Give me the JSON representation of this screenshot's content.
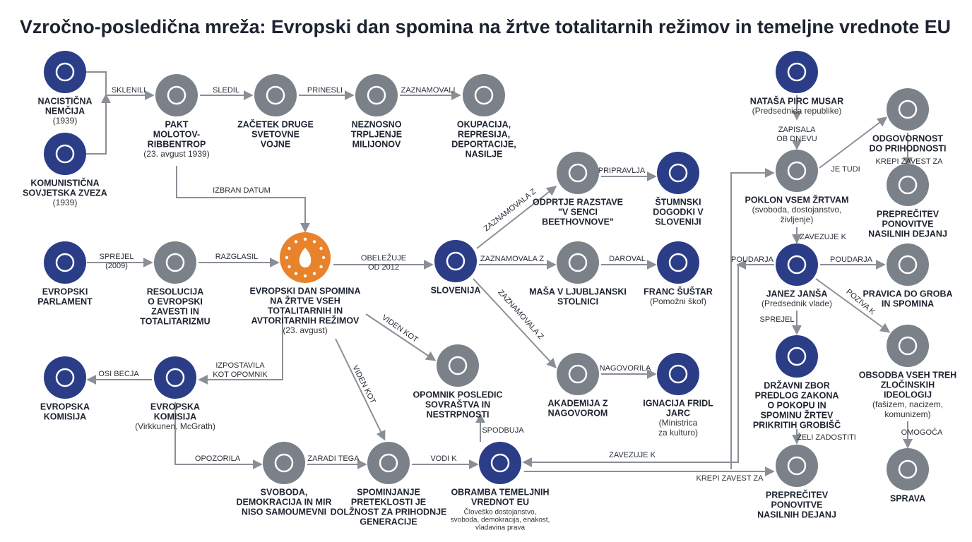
{
  "title": "Vzročno-posledična mreža: Evropski dan spomina na žrtve totalitarnih režimov in temeljne vrednote EU",
  "nodes": [
    {
      "label": [
        "NACISTIČNA",
        "NEMČIJA"
      ],
      "sub": [
        "(1939)"
      ]
    },
    {
      "label": [
        "KOMUNISTIČNA",
        "SOVJETSKA ZVEZA"
      ],
      "sub": [
        "(1939)"
      ]
    },
    {
      "label": [
        "PAKT",
        "MOLOTOV-",
        "RIBBENTROP"
      ],
      "sub": [
        "(23. avgust 1939)"
      ]
    },
    {
      "label": [
        "ZAČETEK DRUGE",
        "SVETOVNE",
        "VOJNE"
      ]
    },
    {
      "label": [
        "NEZNOSNO",
        "TRPLJENJE",
        "MILIJONOV"
      ]
    },
    {
      "label": [
        "OKUPACIJA,",
        "REPRESIJA,",
        "DEPORTACIJE,",
        "NASILJE"
      ]
    },
    {
      "label": [
        "EVROPSKI",
        "PARLAMENT"
      ]
    },
    {
      "label": [
        "RESOLUCIJA",
        "O EVROPSKI",
        "ZAVESTI IN",
        "TOTALITARIZMU"
      ]
    },
    {
      "label": [
        "EVROPSKI DAN SPOMINA",
        "NA ŽRTVE VSEH",
        "TOTALITARNIH IN",
        "AVTORITARNIH REŽIMOV"
      ],
      "sub": [
        "(23. avgust)"
      ]
    },
    {
      "label": [
        "SLOVENIJA"
      ]
    },
    {
      "label": [
        "ODPRTJE RAZSTAVE",
        "\"V SENCI",
        "BEETHOVNOVE\""
      ]
    },
    {
      "label": [
        "ŠTUMNSKI",
        "DOGODKI V",
        "SLOVENIJI"
      ]
    },
    {
      "label": [
        "MAŠA V LJUBLJANSKI",
        "STOLNICI"
      ]
    },
    {
      "label": [
        "FRANC ŠUŠTAR"
      ],
      "sub": [
        "(Pomožni škof)"
      ]
    },
    {
      "label": [
        "AKADEMIJA Z",
        "NAGOVOROM"
      ]
    },
    {
      "label": [
        "IGNACIJA FRIDL",
        "JARC"
      ],
      "sub": [
        "(Ministrica",
        "za kulturo)"
      ]
    },
    {
      "label": [
        "EVROPSKA",
        "KOMISIJA"
      ]
    },
    {
      "label": [
        "EVROPSKA",
        "KOMISIJA"
      ],
      "sub": [
        "(Virkkunen, McGrath)"
      ]
    },
    {
      "label": [
        "OPOMNIK POSLEDIC",
        "SOVRAŠTVA IN",
        "NESTRPNOSTI"
      ]
    },
    {
      "label": [
        "SVOBODA,",
        "DEMOKRACIJA IN MIR",
        "NISO SAMOUMEVNI"
      ]
    },
    {
      "label": [
        "SPOMINJANJE",
        "PRETEKLOSTI JE",
        "DOLŽNOST ZA PRIHODNJE",
        "GENERACIJE"
      ]
    },
    {
      "label": [
        "OBRAMBA TEMELJNIH",
        "VREDNOT EU"
      ],
      "note": [
        "Človeško dostojanstvo,",
        "svoboda, demokracija, enakost,",
        "vladavina prava"
      ]
    },
    {
      "label": [
        "NATAŠA PIRC MUSAR"
      ],
      "sub": [
        "(Predsednica republike)"
      ]
    },
    {
      "label": [
        "POKLON VSEM ŽRTVAM"
      ],
      "sub": [
        "(svoboda, dostojanstvo,",
        "življenje)"
      ]
    },
    {
      "label": [
        "ODGOVORNOST",
        "DO PRIHODNOSTI"
      ]
    },
    {
      "label": [
        "PREPREČITEV",
        "PONOVITVE",
        "NASILNIH DEJANJ"
      ]
    },
    {
      "label": [
        "JANEZ JANŠA"
      ],
      "sub": [
        "(Predsednik vlade)"
      ]
    },
    {
      "label": [
        "PRAVICA DO GROBA",
        "IN SPOMINA"
      ]
    },
    {
      "label": [
        "DRŽAVNI ZBOR",
        "PREDLOG ZAKONA",
        "O POKOPU IN",
        "SPOMINU ŽRTEV",
        "PRIKRITIH GROBIŠČ"
      ]
    },
    {
      "label": [
        "OBSODBA VSEH TREH",
        "ZLOČINSKIH",
        "IDEOLOGIJ"
      ],
      "sub": [
        "(fašizem, nacizem,",
        "komunizem)"
      ]
    },
    {
      "label": [
        "PREPREČITEV",
        "PONOVITVE",
        "NASILNIH DEJANJ"
      ]
    },
    {
      "label": [
        "SPRAVA"
      ]
    }
  ],
  "edges": [
    {
      "label": [
        "SKLENILI"
      ]
    },
    {
      "label": [
        "SLEDIL"
      ]
    },
    {
      "label": [
        "PRINESLI"
      ]
    },
    {
      "label": [
        "ZAZNAMOVALI"
      ]
    },
    {
      "label": [
        "IZBRAN DATUM"
      ]
    },
    {
      "label": [
        "SPREJEL",
        "(2009)"
      ]
    },
    {
      "label": [
        "RAZGLASIL"
      ]
    },
    {
      "label": [
        "OBELEŽUJE",
        "OD 2012"
      ]
    },
    {
      "label": [
        "ZAZNAMOVALA Z"
      ]
    },
    {
      "label": [
        "PRIPRAVLJA"
      ]
    },
    {
      "label": [
        "ZAZNAMOVALA Z"
      ]
    },
    {
      "label": [
        "DAROVAL"
      ]
    },
    {
      "label": [
        "ZAZNAMOVALA Z"
      ]
    },
    {
      "label": [
        "NAGOVORILA"
      ]
    },
    {
      "label": [
        "VIDEN KOT"
      ]
    },
    {
      "label": [
        "VIDEN KOT"
      ]
    },
    {
      "label": [
        "IZPOSTAVILA",
        "KOT OPOMNIK"
      ]
    },
    {
      "label": [
        "OSI BECJA"
      ]
    },
    {
      "label": [
        "OPOZORILA"
      ]
    },
    {
      "label": [
        "ZARADI TEGA"
      ]
    },
    {
      "label": [
        "VODI K"
      ]
    },
    {
      "label": [
        "SPODBUJA"
      ]
    },
    {
      "label": [
        "ZAPISALA",
        "OB DNEVU"
      ]
    },
    {
      "label": [
        "JE TUDI"
      ]
    },
    {
      "label": [
        "KREPI ZAVEST ZA"
      ]
    },
    {
      "label": [
        "ZAVEZUJE K"
      ]
    },
    {
      "label": [
        "POUDARJA"
      ]
    },
    {
      "label": [
        "ZAVEZUJE K"
      ]
    },
    {
      "label": [
        "POUDARJA"
      ]
    },
    {
      "label": [
        "POZIVA K"
      ]
    },
    {
      "label": [
        "SPREJEL"
      ]
    },
    {
      "label": [
        "ŽELI ZADOSTITI"
      ]
    },
    {
      "label": [
        "OMOGOČA"
      ]
    },
    {
      "label": [
        "KREPI ZAVEST ZA"
      ]
    }
  ]
}
